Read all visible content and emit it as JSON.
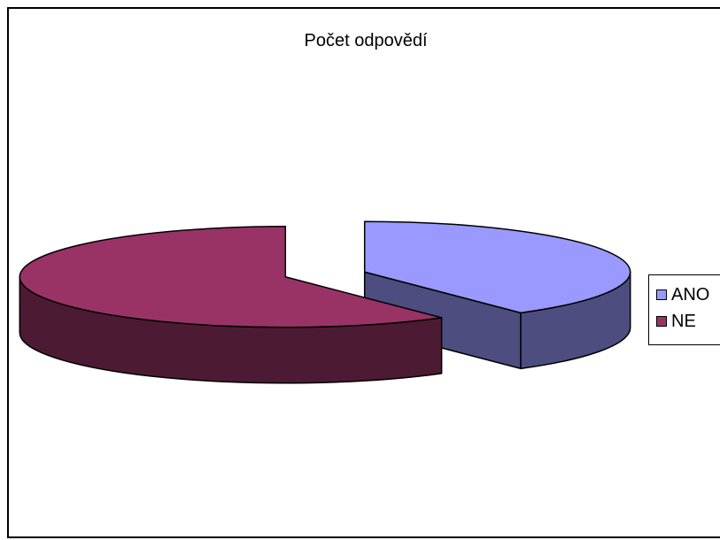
{
  "chart_data": {
    "type": "pie",
    "title": "Počet odpovědí",
    "categories": [
      "ANO",
      "NE"
    ],
    "values": [
      40,
      60
    ],
    "colors": [
      "#9999ff",
      "#993366"
    ],
    "side_colors": [
      "#4d4d80",
      "#4d1a33"
    ],
    "legend_position": "right",
    "style": "3d-exploded"
  }
}
